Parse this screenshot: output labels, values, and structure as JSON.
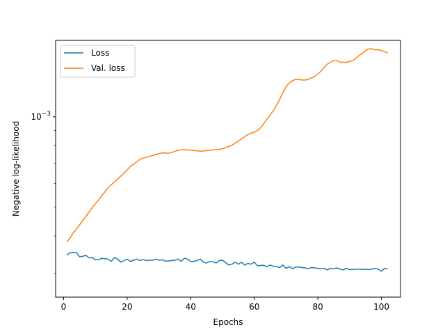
{
  "chart_data": {
    "type": "line",
    "xlabel": "Epochs",
    "ylabel": "Negative log-likelihood",
    "xlim": [
      -2.5,
      106
    ],
    "ylim": [
      0.00025,
      0.0018
    ],
    "yscale": "log",
    "xticks": [
      0,
      20,
      40,
      60,
      80,
      100
    ],
    "yticks": [
      {
        "value": 0.001,
        "base": "10",
        "exp": "−3"
      }
    ],
    "grid": false,
    "legend": {
      "placement": "top-left"
    },
    "series": [
      {
        "name": "Loss",
        "color": "#1f77b4",
        "x": [
          1,
          2,
          3,
          4,
          5,
          6,
          7,
          8,
          9,
          10,
          11,
          12,
          13,
          14,
          15,
          16,
          17,
          18,
          19,
          20,
          21,
          22,
          23,
          24,
          25,
          26,
          27,
          28,
          29,
          30,
          31,
          32,
          33,
          34,
          35,
          36,
          37,
          38,
          39,
          40,
          41,
          42,
          43,
          44,
          45,
          46,
          47,
          48,
          49,
          50,
          51,
          52,
          53,
          54,
          55,
          56,
          57,
          58,
          59,
          60,
          61,
          62,
          63,
          64,
          65,
          66,
          67,
          68,
          69,
          70,
          71,
          72,
          73,
          74,
          75,
          76,
          77,
          78,
          79,
          80,
          81,
          82,
          83,
          84,
          85,
          86,
          87,
          88,
          89,
          90,
          91,
          92,
          93,
          94,
          95,
          96,
          97,
          98,
          99,
          100,
          101,
          102
        ],
        "y": [
          0.000345,
          0.000352,
          0.000352,
          0.000353,
          0.000341,
          0.000342,
          0.000345,
          0.000338,
          0.000339,
          0.000333,
          0.000333,
          0.000337,
          0.000336,
          0.000335,
          0.000329,
          0.000339,
          0.000335,
          0.000327,
          0.000331,
          0.000335,
          0.000329,
          0.000332,
          0.000335,
          0.000331,
          0.000334,
          0.000331,
          0.000332,
          0.000332,
          0.000335,
          0.000332,
          0.000333,
          0.00033,
          0.00033,
          0.000331,
          0.000332,
          0.000335,
          0.000329,
          0.000337,
          0.000335,
          0.000329,
          0.000329,
          0.000331,
          0.000335,
          0.000327,
          0.000325,
          0.000329,
          0.000328,
          0.000325,
          0.000331,
          0.000332,
          0.000326,
          0.00032,
          0.000322,
          0.000327,
          0.000322,
          0.000327,
          0.00032,
          0.000324,
          0.000322,
          0.000327,
          0.000318,
          0.000319,
          0.000319,
          0.000316,
          0.00032,
          0.000317,
          0.000316,
          0.000314,
          0.00032,
          0.000312,
          0.000316,
          0.000311,
          0.000315,
          0.000315,
          0.000314,
          0.000313,
          0.000311,
          0.000314,
          0.000313,
          0.000312,
          0.000311,
          0.000312,
          0.000308,
          0.000312,
          0.000311,
          0.000313,
          0.00031,
          0.000308,
          0.000312,
          0.000309,
          0.000309,
          0.00031,
          0.00031,
          0.000309,
          0.00031,
          0.000309,
          0.00031,
          0.000312,
          0.00031,
          0.000305,
          0.000312,
          0.00031
        ]
      },
      {
        "name": "Val. loss",
        "color": "#ff7f0e",
        "x": [
          1,
          2,
          3,
          4,
          5,
          6,
          7,
          8,
          9,
          10,
          11,
          12,
          13,
          14,
          15,
          16,
          17,
          18,
          19,
          20,
          21,
          22,
          23,
          24,
          25,
          26,
          27,
          28,
          29,
          30,
          31,
          32,
          33,
          34,
          35,
          36,
          37,
          38,
          39,
          40,
          41,
          42,
          43,
          44,
          45,
          46,
          47,
          48,
          49,
          50,
          51,
          52,
          53,
          54,
          55,
          56,
          57,
          58,
          59,
          60,
          61,
          62,
          63,
          64,
          65,
          66,
          67,
          68,
          69,
          70,
          71,
          72,
          73,
          74,
          75,
          76,
          77,
          78,
          79,
          80,
          81,
          82,
          83,
          84,
          85,
          86,
          87,
          88,
          89,
          90,
          91,
          92,
          93,
          94,
          95,
          96,
          97,
          98,
          99,
          100,
          101,
          102
        ],
        "y": [
          0.000382,
          0.000393,
          0.000409,
          0.000421,
          0.000435,
          0.00045,
          0.000465,
          0.000481,
          0.000497,
          0.000512,
          0.000527,
          0.000545,
          0.000562,
          0.00058,
          0.000593,
          0.000606,
          0.00062,
          0.000634,
          0.000648,
          0.000665,
          0.000682,
          0.000695,
          0.000707,
          0.00072,
          0.000728,
          0.000732,
          0.000737,
          0.000743,
          0.000749,
          0.000754,
          0.000757,
          0.000758,
          0.000756,
          0.00076,
          0.000767,
          0.000773,
          0.000775,
          0.000776,
          0.000775,
          0.000774,
          0.000772,
          0.00077,
          0.000768,
          0.000769,
          0.000771,
          0.000773,
          0.000775,
          0.000777,
          0.000779,
          0.000782,
          0.000789,
          0.000796,
          0.000804,
          0.000817,
          0.000831,
          0.000844,
          0.000859,
          0.000873,
          0.000882,
          0.000889,
          0.0009,
          0.000921,
          0.00095,
          0.000983,
          0.001014,
          0.001048,
          0.001092,
          0.001145,
          0.001205,
          0.001262,
          0.001296,
          0.00132,
          0.001333,
          0.001333,
          0.001327,
          0.001327,
          0.001333,
          0.001349,
          0.001365,
          0.001389,
          0.001421,
          0.001466,
          0.001501,
          0.001521,
          0.001542,
          0.001542,
          0.001521,
          0.001521,
          0.001521,
          0.001531,
          0.001542,
          0.001569,
          0.001603,
          0.001628,
          0.001664,
          0.001686,
          0.001686,
          0.001675,
          0.001675,
          0.001665,
          0.00165,
          0.00163
        ]
      }
    ]
  }
}
